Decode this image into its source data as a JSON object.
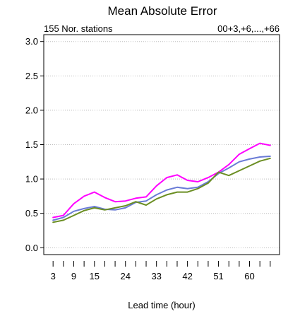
{
  "chart_data": {
    "type": "line",
    "title": "Mean Absolute Error",
    "subtitle_left": "155 Nor. stations",
    "subtitle_right": "00+3,+6,...,+66",
    "xlabel": "Lead time (hour)",
    "ylabel": "",
    "ylim": [
      -0.1,
      3.1
    ],
    "xlim": [
      0.3,
      68.7
    ],
    "y_ticks": [
      0.0,
      0.5,
      1.0,
      1.5,
      2.0,
      2.5,
      3.0
    ],
    "y_tick_labels": [
      "0.0",
      "0.5",
      "1.0",
      "1.5",
      "2.0",
      "2.5",
      "3.0"
    ],
    "x_ticks": [
      3,
      6,
      9,
      12,
      15,
      18,
      21,
      24,
      27,
      30,
      33,
      36,
      39,
      42,
      45,
      48,
      51,
      54,
      57,
      60,
      63,
      66
    ],
    "x_tick_labels": [
      3,
      9,
      15,
      24,
      33,
      42,
      51,
      60
    ],
    "grid": true,
    "x": [
      3,
      6,
      9,
      12,
      15,
      18,
      21,
      24,
      27,
      30,
      33,
      36,
      39,
      42,
      45,
      48,
      51,
      54,
      57,
      60,
      63,
      66
    ],
    "series": [
      {
        "color": "#ff00ff",
        "values": [
          0.44,
          0.47,
          0.64,
          0.75,
          0.81,
          0.73,
          0.67,
          0.68,
          0.72,
          0.74,
          0.9,
          1.02,
          1.06,
          0.98,
          0.96,
          1.02,
          1.1,
          1.21,
          1.36,
          1.44,
          1.52,
          1.49
        ]
      },
      {
        "color": "#6a7bd6",
        "values": [
          0.4,
          0.44,
          0.53,
          0.57,
          0.6,
          0.56,
          0.55,
          0.58,
          0.66,
          0.68,
          0.77,
          0.84,
          0.88,
          0.86,
          0.88,
          0.96,
          1.08,
          1.16,
          1.25,
          1.29,
          1.32,
          1.33
        ]
      },
      {
        "color": "#6b8e23",
        "values": [
          0.37,
          0.4,
          0.47,
          0.54,
          0.58,
          0.55,
          0.58,
          0.61,
          0.67,
          0.62,
          0.71,
          0.77,
          0.81,
          0.81,
          0.86,
          0.94,
          1.1,
          1.05,
          1.12,
          1.19,
          1.26,
          1.3
        ]
      }
    ]
  }
}
